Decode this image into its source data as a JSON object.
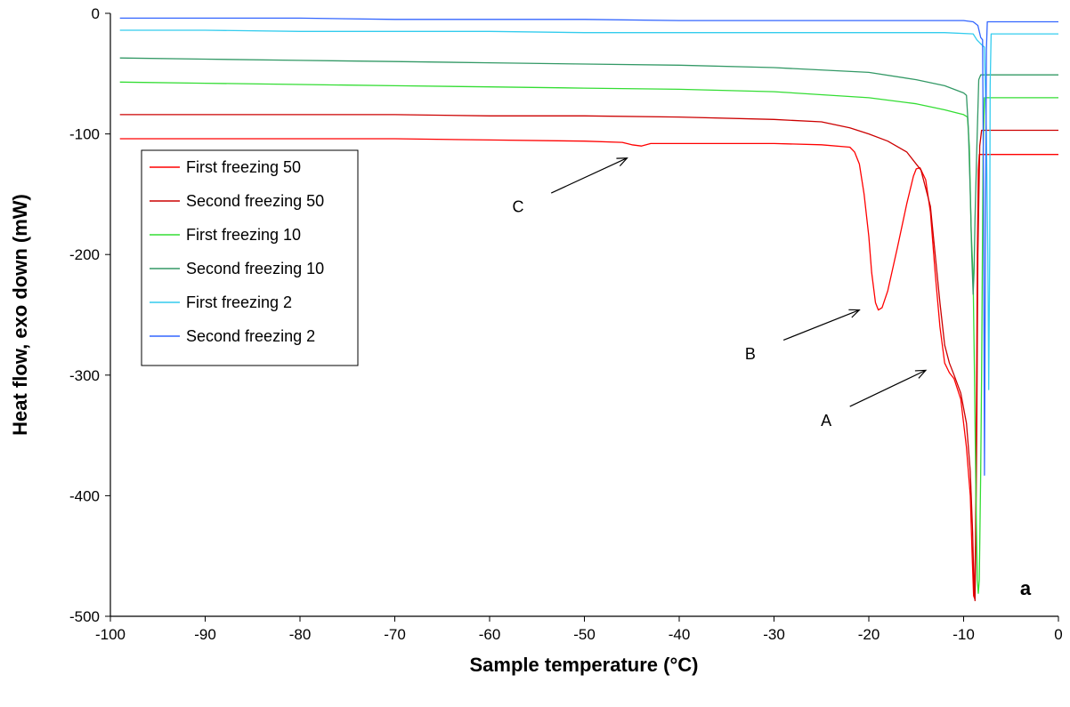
{
  "chart_data": {
    "type": "line",
    "xlabel": "Sample temperature (°C)",
    "ylabel": "Heat flow, exo down (mW)",
    "xlim": [
      -100,
      0
    ],
    "ylim": [
      -500,
      0
    ],
    "xticks": [
      "-100",
      "-90",
      "-80",
      "-70",
      "-60",
      "-50",
      "-40",
      "-30",
      "-20",
      "-10",
      "0"
    ],
    "yticks": [
      "0",
      "-100",
      "-200",
      "-300",
      "-400",
      "-500"
    ],
    "grid": false,
    "legend_position": "left",
    "panel_label": "a",
    "annotations": [
      {
        "label": "A",
        "text_x": -24.5,
        "text_y": -342,
        "arrow_from": [
          -22,
          -326
        ],
        "arrow_to": [
          -14,
          -296
        ]
      },
      {
        "label": "B",
        "text_x": -32.5,
        "text_y": -287,
        "arrow_from": [
          -29,
          -271
        ],
        "arrow_to": [
          -21,
          -246
        ]
      },
      {
        "label": "C",
        "text_x": -57,
        "text_y": -165,
        "arrow_from": [
          -53.5,
          -149
        ],
        "arrow_to": [
          -45.5,
          -120
        ]
      }
    ],
    "series": [
      {
        "name": "First freezing 50",
        "color": "#ff0000",
        "points": [
          [
            -99,
            -104
          ],
          [
            -90,
            -104
          ],
          [
            -80,
            -104
          ],
          [
            -70,
            -104
          ],
          [
            -60,
            -105
          ],
          [
            -50,
            -106
          ],
          [
            -46,
            -107
          ],
          [
            -45,
            -109
          ],
          [
            -44,
            -110
          ],
          [
            -43,
            -108
          ],
          [
            -40,
            -108
          ],
          [
            -30,
            -108
          ],
          [
            -25,
            -109
          ],
          [
            -22,
            -111
          ],
          [
            -21.5,
            -115
          ],
          [
            -21,
            -125
          ],
          [
            -20.5,
            -150
          ],
          [
            -20,
            -185
          ],
          [
            -19.7,
            -215
          ],
          [
            -19.3,
            -240
          ],
          [
            -19,
            -246
          ],
          [
            -18.6,
            -244
          ],
          [
            -18,
            -230
          ],
          [
            -17,
            -195
          ],
          [
            -16,
            -158
          ],
          [
            -15.3,
            -135
          ],
          [
            -15,
            -129
          ],
          [
            -14.6,
            -128
          ],
          [
            -14,
            -138
          ],
          [
            -13.5,
            -165
          ],
          [
            -13,
            -215
          ],
          [
            -12.5,
            -260
          ],
          [
            -12,
            -290
          ],
          [
            -11.5,
            -298
          ],
          [
            -11,
            -303
          ],
          [
            -10.3,
            -320
          ],
          [
            -9.7,
            -360
          ],
          [
            -9.3,
            -400
          ],
          [
            -9.1,
            -450
          ],
          [
            -8.95,
            -483
          ],
          [
            -8.85,
            -485
          ],
          [
            -8.75,
            -440
          ],
          [
            -8.65,
            -330
          ],
          [
            -8.55,
            -200
          ],
          [
            -8.45,
            -130
          ],
          [
            -8.35,
            -117
          ],
          [
            0,
            -117
          ]
        ]
      },
      {
        "name": "Second freezing 50",
        "color": "#cc0000",
        "points": [
          [
            -99,
            -84
          ],
          [
            -90,
            -84
          ],
          [
            -80,
            -84
          ],
          [
            -70,
            -84
          ],
          [
            -60,
            -85
          ],
          [
            -50,
            -85
          ],
          [
            -40,
            -86
          ],
          [
            -30,
            -88
          ],
          [
            -25,
            -90
          ],
          [
            -22,
            -95
          ],
          [
            -20,
            -100
          ],
          [
            -18,
            -106
          ],
          [
            -16,
            -115
          ],
          [
            -14.5,
            -130
          ],
          [
            -13.5,
            -160
          ],
          [
            -12.5,
            -240
          ],
          [
            -12,
            -275
          ],
          [
            -11.5,
            -290
          ],
          [
            -11,
            -300
          ],
          [
            -10.3,
            -315
          ],
          [
            -9.7,
            -340
          ],
          [
            -9.3,
            -380
          ],
          [
            -9.05,
            -430
          ],
          [
            -8.9,
            -478
          ],
          [
            -8.8,
            -487
          ],
          [
            -8.7,
            -430
          ],
          [
            -8.6,
            -330
          ],
          [
            -8.5,
            -200
          ],
          [
            -8.3,
            -110
          ],
          [
            -8.1,
            -97
          ],
          [
            0,
            -97
          ]
        ]
      },
      {
        "name": "First freezing 10",
        "color": "#33dd33",
        "points": [
          [
            -99,
            -57
          ],
          [
            -90,
            -58
          ],
          [
            -80,
            -59
          ],
          [
            -70,
            -60
          ],
          [
            -60,
            -61
          ],
          [
            -50,
            -62
          ],
          [
            -40,
            -63
          ],
          [
            -30,
            -65
          ],
          [
            -20,
            -70
          ],
          [
            -15,
            -75
          ],
          [
            -12,
            -80
          ],
          [
            -10,
            -84
          ],
          [
            -9.6,
            -86
          ],
          [
            -9.4,
            -110
          ],
          [
            -9.2,
            -180
          ],
          [
            -9,
            -220
          ],
          [
            -8.85,
            -300
          ],
          [
            -8.7,
            -400
          ],
          [
            -8.55,
            -470
          ],
          [
            -8.45,
            -481
          ],
          [
            -8.35,
            -470
          ],
          [
            -8.2,
            -380
          ],
          [
            -8.1,
            -300
          ],
          [
            -7.95,
            -120
          ],
          [
            -7.8,
            -70
          ],
          [
            0,
            -70
          ]
        ]
      },
      {
        "name": "Second freezing 10",
        "color": "#339966",
        "points": [
          [
            -99,
            -37
          ],
          [
            -90,
            -38
          ],
          [
            -80,
            -39
          ],
          [
            -70,
            -40
          ],
          [
            -60,
            -41
          ],
          [
            -50,
            -42
          ],
          [
            -40,
            -43
          ],
          [
            -30,
            -45
          ],
          [
            -20,
            -49
          ],
          [
            -15,
            -55
          ],
          [
            -12,
            -60
          ],
          [
            -10,
            -66
          ],
          [
            -9.7,
            -68
          ],
          [
            -9.5,
            -95
          ],
          [
            -9.3,
            -150
          ],
          [
            -9.15,
            -200
          ],
          [
            -9,
            -233
          ],
          [
            -8.9,
            -215
          ],
          [
            -8.8,
            -170
          ],
          [
            -8.6,
            -110
          ],
          [
            -8.4,
            -55
          ],
          [
            -8.2,
            -51
          ],
          [
            0,
            -51
          ]
        ]
      },
      {
        "name": "First freezing 2",
        "color": "#33ccee",
        "points": [
          [
            -99,
            -14
          ],
          [
            -90,
            -14
          ],
          [
            -80,
            -15
          ],
          [
            -70,
            -15
          ],
          [
            -60,
            -15
          ],
          [
            -50,
            -16
          ],
          [
            -40,
            -16
          ],
          [
            -30,
            -16
          ],
          [
            -20,
            -16
          ],
          [
            -12,
            -16
          ],
          [
            -9,
            -17
          ],
          [
            -8.6,
            -22
          ],
          [
            -8.1,
            -26
          ],
          [
            -7.8,
            -28
          ],
          [
            -7.6,
            -100
          ],
          [
            -7.45,
            -200
          ],
          [
            -7.35,
            -312
          ],
          [
            -7.25,
            -200
          ],
          [
            -7.2,
            -60
          ],
          [
            -7.1,
            -17
          ],
          [
            0,
            -17
          ]
        ]
      },
      {
        "name": "Second freezing 2",
        "color": "#3366ff",
        "points": [
          [
            -99,
            -4
          ],
          [
            -90,
            -4
          ],
          [
            -80,
            -4
          ],
          [
            -70,
            -5
          ],
          [
            -60,
            -5
          ],
          [
            -50,
            -5
          ],
          [
            -40,
            -6
          ],
          [
            -30,
            -6
          ],
          [
            -20,
            -6
          ],
          [
            -10,
            -6
          ],
          [
            -9,
            -7
          ],
          [
            -8.5,
            -10
          ],
          [
            -8.2,
            -20
          ],
          [
            -8,
            -22
          ],
          [
            -7.9,
            -150
          ],
          [
            -7.8,
            -383
          ],
          [
            -7.7,
            -200
          ],
          [
            -7.6,
            -30
          ],
          [
            -7.5,
            -7
          ],
          [
            0,
            -7
          ]
        ]
      }
    ]
  }
}
